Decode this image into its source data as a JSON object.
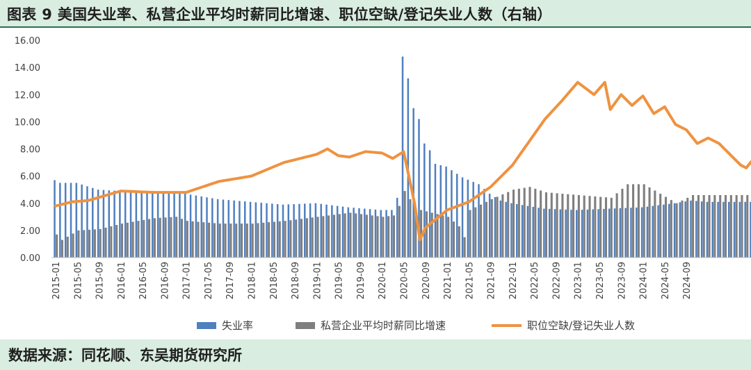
{
  "title": "图表 9 美国失业率、私营企业平均时薪同比增速、职位空缺/登记失业人数（右轴）",
  "source": "数据来源：同花顺、东吴期货研究所",
  "colors": {
    "unemployment": "#4f7fbf",
    "wage": "#7f7f7f",
    "ratio": "#ef9240",
    "header_bg": "#d9ede0"
  },
  "chart_data": {
    "type": "bar",
    "grid": false,
    "legend_position": "bottom",
    "ylim": [
      0,
      16
    ],
    "y_ticks": [
      "16.00",
      "14.00",
      "12.00",
      "10.00",
      "8.00",
      "6.00",
      "4.00",
      "2.00",
      "0.00"
    ],
    "x_tick_labels": [
      "2015-01",
      "2015-05",
      "2015-09",
      "2016-01",
      "2016-05",
      "2016-09",
      "2017-01",
      "2017-05",
      "2017-09",
      "2018-01",
      "2018-05",
      "2018-09",
      "2019-01",
      "2019-05",
      "2019-09",
      "2020-01",
      "2020-05",
      "2020-09",
      "2021-01",
      "2021-05",
      "2021-09",
      "2022-01",
      "2022-05",
      "2022-09",
      "2023-01",
      "2023-05",
      "2023-09",
      "2024-01",
      "2024-05",
      "2024-09"
    ],
    "series": [
      {
        "name": "失业率",
        "type": "bar",
        "unit": "%",
        "anchors": [
          [
            0,
            5.7
          ],
          [
            1,
            5.5
          ],
          [
            4,
            5.5
          ],
          [
            8,
            5.0
          ],
          [
            12,
            4.9
          ],
          [
            18,
            4.9
          ],
          [
            24,
            4.7
          ],
          [
            30,
            4.3
          ],
          [
            36,
            4.1
          ],
          [
            42,
            3.9
          ],
          [
            48,
            4.0
          ],
          [
            54,
            3.7
          ],
          [
            60,
            3.5
          ],
          [
            62,
            3.5
          ],
          [
            63,
            4.4
          ],
          [
            64,
            14.8
          ],
          [
            65,
            13.2
          ],
          [
            66,
            11.0
          ],
          [
            67,
            10.2
          ],
          [
            68,
            8.4
          ],
          [
            69,
            7.9
          ],
          [
            70,
            6.9
          ],
          [
            72,
            6.7
          ],
          [
            75,
            5.9
          ],
          [
            78,
            5.4
          ],
          [
            80,
            4.7
          ],
          [
            82,
            4.2
          ],
          [
            84,
            4.0
          ],
          [
            90,
            3.6
          ],
          [
            96,
            3.5
          ],
          [
            102,
            3.6
          ],
          [
            108,
            3.7
          ],
          [
            114,
            4.0
          ],
          [
            117,
            4.2
          ],
          [
            120,
            4.1
          ]
        ]
      },
      {
        "name": "私营企业平均时薪同比增速",
        "type": "bar",
        "unit": "%",
        "anchors": [
          [
            0,
            1.7
          ],
          [
            1,
            1.3
          ],
          [
            4,
            2.0
          ],
          [
            8,
            2.1
          ],
          [
            12,
            2.5
          ],
          [
            18,
            2.9
          ],
          [
            22,
            3.0
          ],
          [
            24,
            2.7
          ],
          [
            30,
            2.5
          ],
          [
            36,
            2.5
          ],
          [
            42,
            2.7
          ],
          [
            48,
            3.0
          ],
          [
            54,
            3.3
          ],
          [
            60,
            3.0
          ],
          [
            62,
            3.1
          ],
          [
            63,
            3.8
          ],
          [
            64,
            4.9
          ],
          [
            65,
            4.3
          ],
          [
            66,
            3.6
          ],
          [
            69,
            3.3
          ],
          [
            72,
            3.0
          ],
          [
            74,
            2.3
          ],
          [
            75,
            1.5
          ],
          [
            76,
            3.5
          ],
          [
            80,
            4.3
          ],
          [
            84,
            5.0
          ],
          [
            87,
            5.2
          ],
          [
            90,
            4.8
          ],
          [
            96,
            4.6
          ],
          [
            102,
            4.4
          ],
          [
            105,
            5.4
          ],
          [
            108,
            5.4
          ],
          [
            114,
            4.0
          ],
          [
            117,
            4.6
          ],
          [
            120,
            4.6
          ]
        ]
      },
      {
        "name": "职位空缺/登记失业人数",
        "type": "line",
        "axis": "right",
        "anchors": [
          [
            0,
            3.8
          ],
          [
            3,
            4.1
          ],
          [
            6,
            4.2
          ],
          [
            12,
            4.9
          ],
          [
            18,
            4.8
          ],
          [
            24,
            4.8
          ],
          [
            30,
            5.6
          ],
          [
            36,
            6.0
          ],
          [
            42,
            7.0
          ],
          [
            48,
            7.6
          ],
          [
            50,
            8.0
          ],
          [
            52,
            7.5
          ],
          [
            54,
            7.4
          ],
          [
            57,
            7.8
          ],
          [
            60,
            7.7
          ],
          [
            62,
            7.3
          ],
          [
            64,
            7.8
          ],
          [
            66,
            4.0
          ],
          [
            67,
            1.3
          ],
          [
            68,
            2.2
          ],
          [
            72,
            3.5
          ],
          [
            76,
            4.1
          ],
          [
            80,
            5.2
          ],
          [
            84,
            6.8
          ],
          [
            87,
            8.5
          ],
          [
            90,
            10.2
          ],
          [
            93,
            11.5
          ],
          [
            96,
            12.9
          ],
          [
            99,
            12.0
          ],
          [
            101,
            12.9
          ],
          [
            102,
            10.9
          ],
          [
            104,
            12.0
          ],
          [
            106,
            11.2
          ],
          [
            108,
            11.9
          ],
          [
            110,
            10.6
          ],
          [
            112,
            11.1
          ],
          [
            114,
            9.8
          ],
          [
            116,
            9.4
          ],
          [
            118,
            8.4
          ],
          [
            120,
            8.8
          ],
          [
            122,
            8.4
          ],
          [
            124,
            7.6
          ],
          [
            126,
            6.8
          ],
          [
            127,
            6.6
          ],
          [
            128,
            7.1
          ]
        ]
      }
    ]
  }
}
